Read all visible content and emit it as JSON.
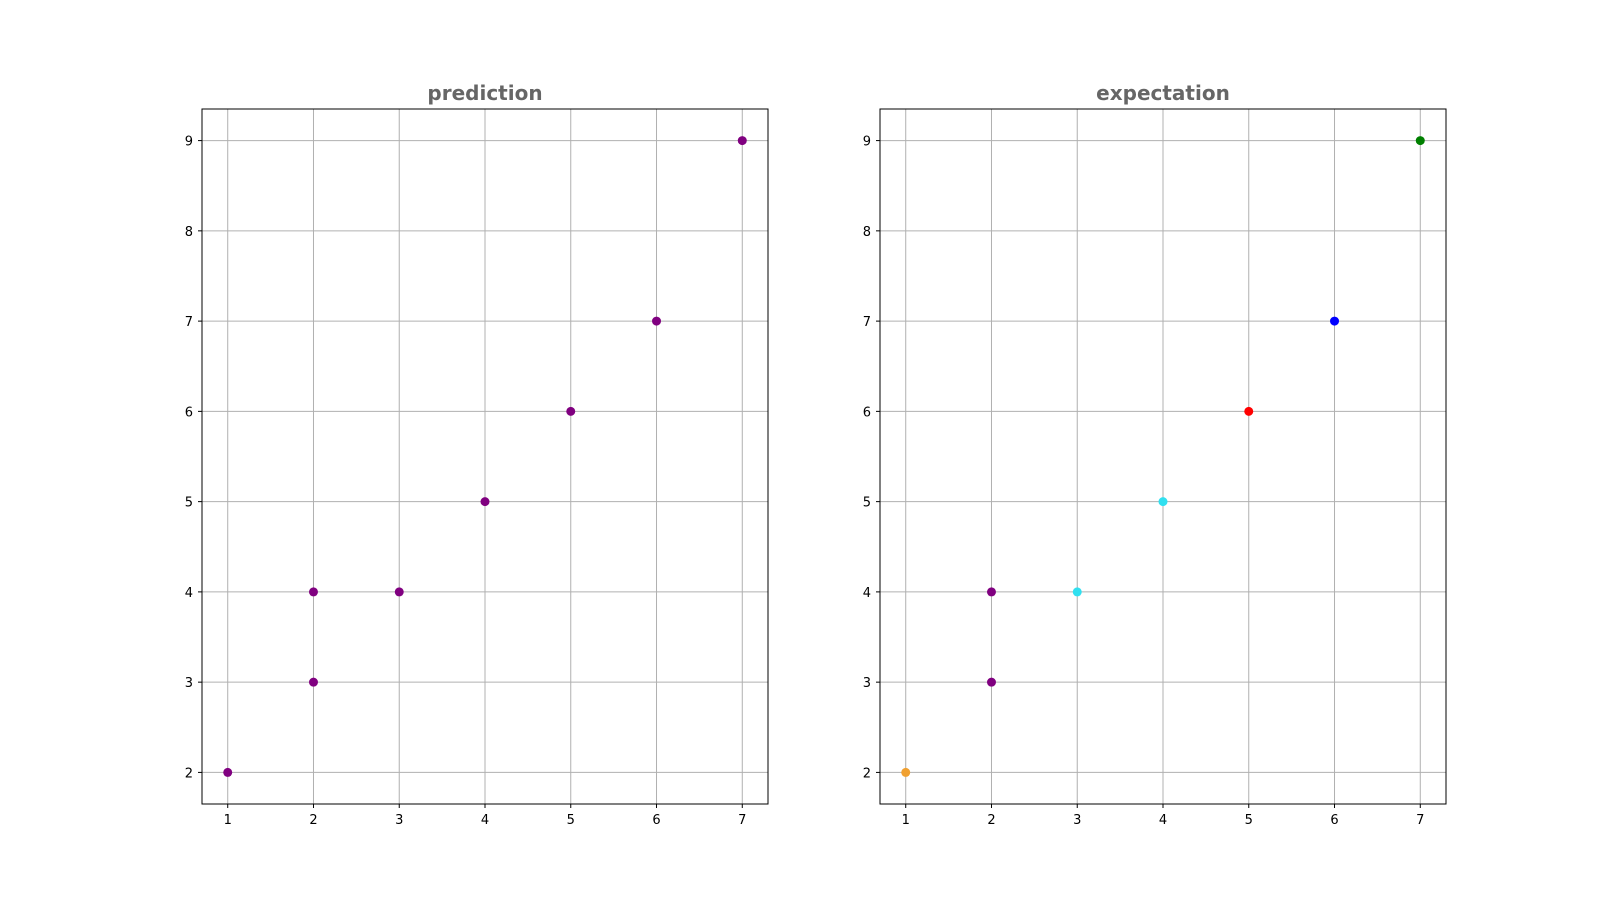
{
  "chart_data": [
    {
      "type": "scatter",
      "title": "prediction",
      "xlabel": "",
      "ylabel": "",
      "xlim": [
        0.7,
        7.3
      ],
      "ylim": [
        1.65,
        9.35
      ],
      "xticks": [
        1,
        2,
        3,
        4,
        5,
        6,
        7
      ],
      "yticks": [
        2,
        3,
        4,
        5,
        6,
        7,
        8,
        9
      ],
      "grid": true,
      "points": [
        {
          "x": 1,
          "y": 2,
          "color": "#800080"
        },
        {
          "x": 2,
          "y": 3,
          "color": "#800080"
        },
        {
          "x": 2,
          "y": 4,
          "color": "#800080"
        },
        {
          "x": 3,
          "y": 4,
          "color": "#800080"
        },
        {
          "x": 4,
          "y": 5,
          "color": "#800080"
        },
        {
          "x": 5,
          "y": 6,
          "color": "#800080"
        },
        {
          "x": 6,
          "y": 7,
          "color": "#800080"
        },
        {
          "x": 7,
          "y": 9,
          "color": "#800080"
        }
      ]
    },
    {
      "type": "scatter",
      "title": "expectation",
      "xlabel": "",
      "ylabel": "",
      "xlim": [
        0.7,
        7.3
      ],
      "ylim": [
        1.65,
        9.35
      ],
      "xticks": [
        1,
        2,
        3,
        4,
        5,
        6,
        7
      ],
      "yticks": [
        2,
        3,
        4,
        5,
        6,
        7,
        8,
        9
      ],
      "grid": true,
      "points": [
        {
          "x": 1,
          "y": 2,
          "color": "#f0a030"
        },
        {
          "x": 2,
          "y": 3,
          "color": "#800080"
        },
        {
          "x": 2,
          "y": 4,
          "color": "#800080"
        },
        {
          "x": 3,
          "y": 4,
          "color": "#30e0f0"
        },
        {
          "x": 4,
          "y": 5,
          "color": "#30e0f0"
        },
        {
          "x": 5,
          "y": 6,
          "color": "#ff0000"
        },
        {
          "x": 6,
          "y": 7,
          "color": "#0000ff"
        },
        {
          "x": 7,
          "y": 9,
          "color": "#008000"
        }
      ]
    }
  ]
}
